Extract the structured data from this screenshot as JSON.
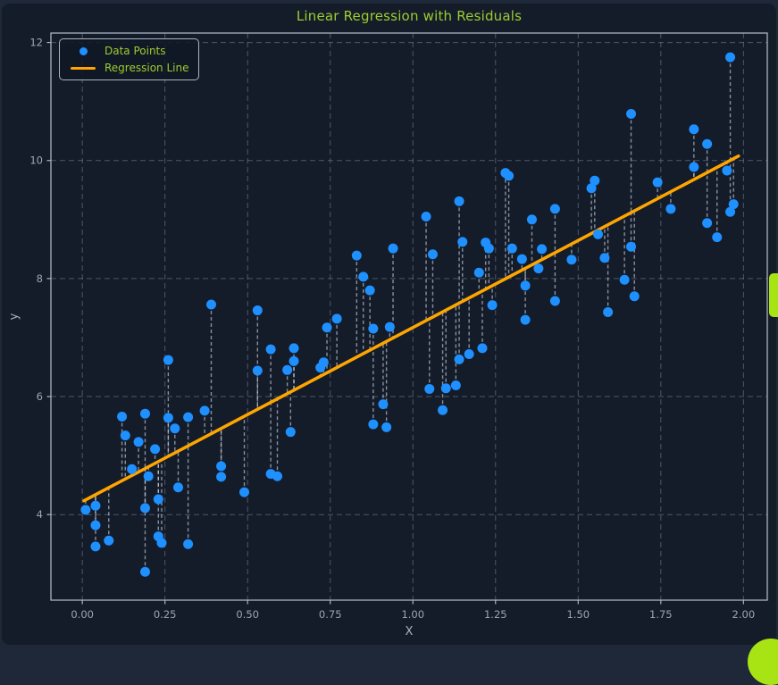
{
  "window": {
    "page_background": "#1e2838",
    "card_background": "#141c2a"
  },
  "scrollbar": {
    "thumb_color": "#a8e414"
  },
  "fab": {
    "color": "#a8e414"
  },
  "chart_data": {
    "type": "scatter",
    "title": "Linear Regression with Residuals",
    "xlabel": "X",
    "ylabel": "y",
    "xlim": [
      -0.095,
      2.072
    ],
    "ylim": [
      2.55,
      12.16
    ],
    "grid": true,
    "grid_style": "dashed",
    "xticks": {
      "values": [
        0.0,
        0.25,
        0.5,
        0.75,
        1.0,
        1.25,
        1.5,
        1.75,
        2.0
      ],
      "labels": [
        "0.00",
        "0.25",
        "0.50",
        "0.75",
        "1.00",
        "1.25",
        "1.50",
        "1.75",
        "2.00"
      ]
    },
    "yticks": {
      "values": [
        4,
        6,
        8,
        10,
        12
      ],
      "labels": [
        "4",
        "6",
        "8",
        "10",
        "12"
      ]
    },
    "legend": {
      "position": "upper left",
      "items": [
        {
          "label": "Data Points",
          "marker": "point",
          "color": "#1e90ff"
        },
        {
          "label": "Regression Line",
          "marker": "line",
          "color": "#ffa500"
        }
      ]
    },
    "regression_line": {
      "slope": 2.95,
      "intercept": 4.22,
      "x_range": [
        0.005,
        1.985
      ],
      "color": "#ffa500"
    },
    "residuals": {
      "shown": true,
      "style": "dashed",
      "color": "#c7cfda"
    },
    "point_color": "#1e90ff",
    "colors": {
      "grid": "#7e8899",
      "spine": "#a9b4c2",
      "tick_label": "#9aa5b5",
      "title": "#9ccd30"
    },
    "points": [
      [
        0.01,
        4.08
      ],
      [
        0.04,
        4.15
      ],
      [
        0.04,
        3.82
      ],
      [
        0.04,
        3.46
      ],
      [
        0.08,
        3.56
      ],
      [
        0.12,
        5.66
      ],
      [
        0.13,
        5.34
      ],
      [
        0.15,
        4.77
      ],
      [
        0.17,
        5.23
      ],
      [
        0.19,
        5.71
      ],
      [
        0.19,
        4.11
      ],
      [
        0.19,
        3.03
      ],
      [
        0.2,
        4.65
      ],
      [
        0.22,
        5.11
      ],
      [
        0.23,
        4.26
      ],
      [
        0.23,
        3.63
      ],
      [
        0.24,
        3.52
      ],
      [
        0.26,
        6.62
      ],
      [
        0.26,
        5.64
      ],
      [
        0.28,
        5.46
      ],
      [
        0.29,
        4.46
      ],
      [
        0.32,
        5.65
      ],
      [
        0.32,
        3.5
      ],
      [
        0.37,
        5.76
      ],
      [
        0.39,
        7.56
      ],
      [
        0.42,
        4.82
      ],
      [
        0.42,
        4.64
      ],
      [
        0.49,
        4.38
      ],
      [
        0.53,
        7.46
      ],
      [
        0.53,
        6.44
      ],
      [
        0.57,
        6.8
      ],
      [
        0.57,
        4.69
      ],
      [
        0.59,
        4.65
      ],
      [
        0.62,
        6.45
      ],
      [
        0.63,
        5.4
      ],
      [
        0.64,
        6.82
      ],
      [
        0.64,
        6.6
      ],
      [
        0.72,
        6.49
      ],
      [
        0.73,
        6.58
      ],
      [
        0.74,
        7.17
      ],
      [
        0.77,
        7.32
      ],
      [
        0.83,
        8.39
      ],
      [
        0.85,
        8.03
      ],
      [
        0.87,
        7.8
      ],
      [
        0.88,
        7.15
      ],
      [
        0.88,
        5.53
      ],
      [
        0.91,
        5.87
      ],
      [
        0.92,
        5.48
      ],
      [
        0.93,
        7.18
      ],
      [
        0.94,
        8.51
      ],
      [
        1.04,
        9.05
      ],
      [
        1.05,
        6.13
      ],
      [
        1.06,
        8.41
      ],
      [
        1.09,
        5.77
      ],
      [
        1.1,
        6.14
      ],
      [
        1.13,
        6.19
      ],
      [
        1.14,
        9.31
      ],
      [
        1.14,
        6.63
      ],
      [
        1.15,
        8.62
      ],
      [
        1.17,
        6.72
      ],
      [
        1.2,
        8.1
      ],
      [
        1.21,
        6.82
      ],
      [
        1.22,
        8.61
      ],
      [
        1.23,
        8.51
      ],
      [
        1.24,
        7.55
      ],
      [
        1.28,
        9.79
      ],
      [
        1.29,
        9.74
      ],
      [
        1.3,
        8.51
      ],
      [
        1.33,
        8.33
      ],
      [
        1.34,
        7.88
      ],
      [
        1.34,
        7.3
      ],
      [
        1.36,
        9.0
      ],
      [
        1.38,
        8.17
      ],
      [
        1.39,
        8.5
      ],
      [
        1.43,
        9.18
      ],
      [
        1.43,
        7.62
      ],
      [
        1.48,
        8.32
      ],
      [
        1.54,
        9.53
      ],
      [
        1.55,
        9.66
      ],
      [
        1.56,
        8.75
      ],
      [
        1.58,
        8.35
      ],
      [
        1.59,
        7.43
      ],
      [
        1.64,
        7.98
      ],
      [
        1.66,
        10.79
      ],
      [
        1.66,
        8.54
      ],
      [
        1.67,
        7.7
      ],
      [
        1.74,
        9.63
      ],
      [
        1.78,
        9.18
      ],
      [
        1.85,
        10.53
      ],
      [
        1.85,
        9.89
      ],
      [
        1.89,
        10.28
      ],
      [
        1.89,
        8.94
      ],
      [
        1.92,
        8.7
      ],
      [
        1.95,
        9.83
      ],
      [
        1.96,
        11.75
      ],
      [
        1.96,
        9.13
      ],
      [
        1.97,
        9.26
      ]
    ]
  }
}
